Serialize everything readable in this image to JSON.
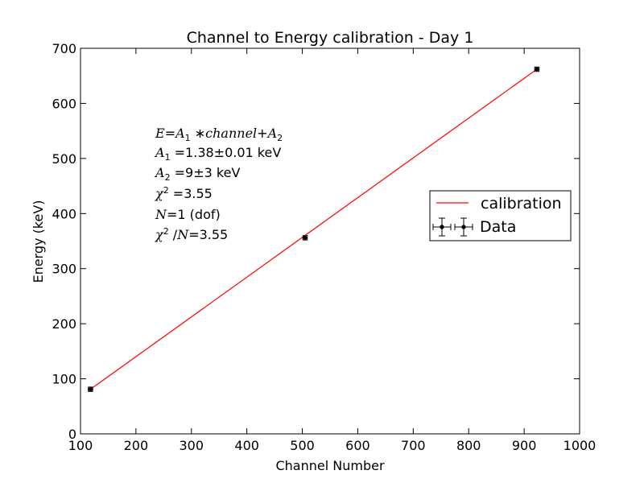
{
  "chart_data": {
    "type": "scatter",
    "title": "Channel to Energy calibration - Day 1",
    "xlabel": "Channel Number",
    "ylabel": "Energy (keV)",
    "xlim": [
      100,
      1000
    ],
    "ylim": [
      0,
      700
    ],
    "xticks": [
      100,
      200,
      300,
      400,
      500,
      600,
      700,
      800,
      900,
      1000
    ],
    "yticks": [
      0,
      100,
      200,
      300,
      400,
      500,
      600,
      700
    ],
    "grid": false,
    "legend_placement": "right",
    "series": [
      {
        "name": "calibration",
        "kind": "line",
        "color": "#ff0000",
        "x": [
          118,
          923
        ],
        "y": [
          81,
          662
        ]
      },
      {
        "name": "Data",
        "kind": "errorbar",
        "color": "#000000",
        "x": [
          118,
          505,
          923
        ],
        "y": [
          81,
          356,
          662
        ],
        "xerr": [
          4,
          4,
          4
        ],
        "yerr": [
          4,
          4,
          4
        ]
      }
    ],
    "annotations": [
      "E=A1*channel+A2",
      "A1=1.38±0.01 keV",
      "A2=9±3 keV",
      "χ2=3.55",
      "N=1 (dof)",
      "χ2/N=3.55"
    ]
  }
}
